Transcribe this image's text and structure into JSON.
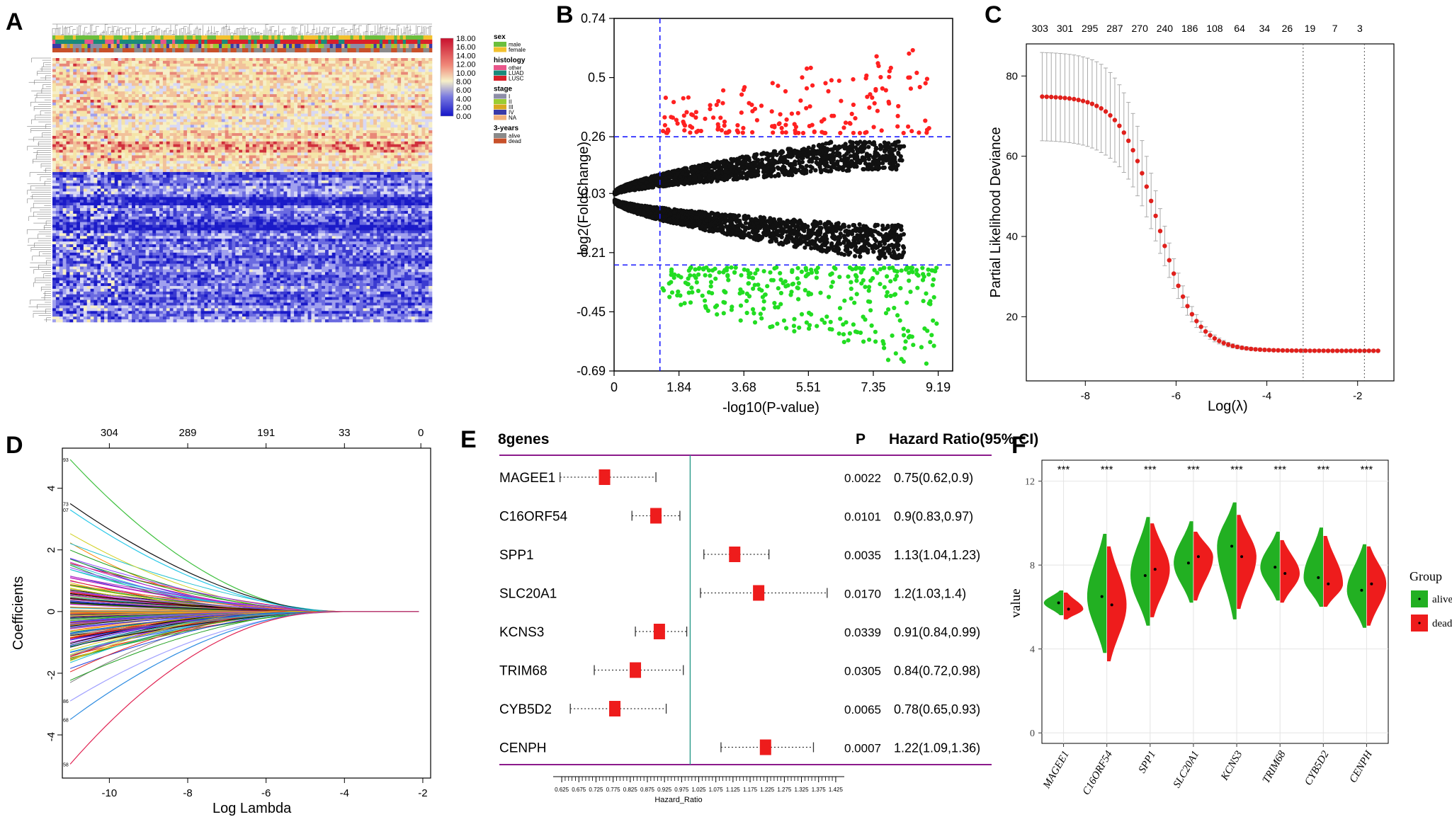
{
  "panel_letters": [
    "A",
    "B",
    "C",
    "D",
    "E",
    "F"
  ],
  "chart_data": [
    {
      "panel": "A",
      "type": "heatmap",
      "color_scale": {
        "ticks": [
          "18.00",
          "16.00",
          "14.00",
          "12.00",
          "10.00",
          "8.00",
          "6.00",
          "4.00",
          "2.00",
          "0.00"
        ],
        "colors": [
          "#c8102e",
          "#f6e6b4",
          "#1414c8"
        ]
      },
      "legend_groups": [
        {
          "title": "sex",
          "items": [
            {
              "label": "male",
              "color": "#6cbf3c"
            },
            {
              "label": "female",
              "color": "#f2c12e"
            }
          ]
        },
        {
          "title": "histology",
          "items": [
            {
              "label": "other",
              "color": "#e8558a"
            },
            {
              "label": "LUAD",
              "color": "#1a8a7a"
            },
            {
              "label": "LUSC",
              "color": "#d8202a"
            }
          ]
        },
        {
          "title": "stage",
          "items": [
            {
              "label": "I",
              "color": "#8e8ea8"
            },
            {
              "label": "II",
              "color": "#9acd32"
            },
            {
              "label": "III",
              "color": "#d8a820"
            },
            {
              "label": "IV",
              "color": "#3a3aa8"
            },
            {
              "label": "NA",
              "color": "#f2b07a"
            }
          ]
        },
        {
          "title": "3-years",
          "items": [
            {
              "label": "alive",
              "color": "#8a8a8a"
            },
            {
              "label": "dead",
              "color": "#c8502a"
            }
          ]
        }
      ]
    },
    {
      "panel": "B",
      "type": "scatter",
      "xlabel": "-log10(P-value)",
      "ylabel": "log2(FoldChange)",
      "xticks": [
        "0",
        "1.84",
        "3.68",
        "5.51",
        "7.35",
        "9.19"
      ],
      "xtick_values": [
        0,
        1.84,
        3.68,
        5.51,
        7.35,
        9.19
      ],
      "yticks": [
        "0.74",
        "0.5",
        "0.26",
        "0.03",
        "-0.21",
        "-0.45",
        "-0.69"
      ],
      "ytick_values": [
        0.74,
        0.5,
        0.26,
        0.03,
        -0.21,
        -0.45,
        -0.69
      ],
      "xlim": [
        0,
        9.6
      ],
      "ylim": [
        -0.69,
        0.74
      ],
      "thresholds": {
        "x": 1.3,
        "y_up": 0.26,
        "y_down": -0.26
      },
      "colors": {
        "up": "#ff2020",
        "down": "#22dd22",
        "ns": "#111111",
        "line": "#1a1aff"
      },
      "n_points": {
        "ns": 3400,
        "up": 170,
        "down": 330
      }
    },
    {
      "panel": "C",
      "type": "line",
      "xlabel": "Log(λ)",
      "ylabel": "Partial Likelihood Deviance",
      "xticks": [
        "-8",
        "-6",
        "-4",
        "-2"
      ],
      "xtick_values": [
        -8,
        -6,
        -4,
        -2
      ],
      "yticks": [
        "20",
        "40",
        "60",
        "80"
      ],
      "ytick_values": [
        20,
        40,
        60,
        80
      ],
      "xlim": [
        -9.3,
        -1.2
      ],
      "ylim": [
        4,
        88
      ],
      "top_labels": [
        "303",
        "301",
        "295",
        "287",
        "270",
        "240",
        "186",
        "108",
        "64",
        "34",
        "26",
        "19",
        "7",
        "3"
      ],
      "top_label_x": [
        -9.0,
        -8.45,
        -7.9,
        -7.35,
        -6.8,
        -6.25,
        -5.7,
        -5.15,
        -4.6,
        -4.05,
        -3.55,
        -3.05,
        -2.5,
        -1.95
      ],
      "vlines": [
        -3.2,
        -1.85
      ],
      "x_start": -8.95,
      "x_end": -1.55,
      "n_points": 75,
      "curve": {
        "start": 75,
        "end": 11.5,
        "mid": -6.4,
        "width": 0.42
      },
      "error_bar_start": 11,
      "error_bar_end": 0.3,
      "colors": {
        "points": "#e0201c",
        "error_bars": "#aaaaaa"
      }
    },
    {
      "panel": "D",
      "type": "line",
      "xlabel": "Log Lambda",
      "ylabel": "Coefficients",
      "xticks": [
        "-10",
        "-8",
        "-6",
        "-4",
        "-2"
      ],
      "xtick_values": [
        -10,
        -8,
        -6,
        -4,
        -2
      ],
      "yticks": [
        "-4",
        "-2",
        "0",
        "2",
        "4"
      ],
      "ytick_values": [
        -4,
        -2,
        0,
        2,
        4
      ],
      "xlim": [
        -11.2,
        -1.8
      ],
      "ylim": [
        -5.4,
        5.3
      ],
      "top_labels": [
        "304",
        "289",
        "191",
        "33",
        "0"
      ],
      "top_label_x": [
        -10,
        -8,
        -6,
        -4,
        -2.05
      ],
      "x_start": -11,
      "x_end": -2.1,
      "labelled_paths": [
        {
          "label": "93",
          "start": 4.93,
          "color": "#3ec03e"
        },
        {
          "label": "73",
          "start": 3.5,
          "color": "#111111"
        },
        {
          "label": "07",
          "start": 3.3,
          "color": "#28c8e8"
        },
        {
          "label": "86",
          "start": -2.9,
          "color": "#a0a0ff"
        },
        {
          "label": "68",
          "start": -3.5,
          "color": "#2a8ae0"
        },
        {
          "label": "58",
          "start": -4.95,
          "color": "#e02050"
        }
      ],
      "n_background_paths": 170
    },
    {
      "panel": "E",
      "type": "table",
      "header": {
        "genes": "8genes",
        "p": "P",
        "hr": "Hazard Ratio(95% CI)"
      },
      "xlabel": "Hazard_Ratio",
      "xticks": [
        "0.625",
        "0.675",
        "0.725",
        "0.775",
        "0.825",
        "0.875",
        "0.925",
        "0.975",
        "1.025",
        "1.075",
        "1.125",
        "1.175",
        "1.225",
        "1.275",
        "1.325",
        "1.375",
        "1.425"
      ],
      "xlim": [
        0.6,
        1.45
      ],
      "reference": 1.0,
      "rows": [
        {
          "gene": "MAGEE1",
          "p": "0.0022",
          "hr_text": "0.75(0.62,0.9)",
          "hr": 0.75,
          "lo": 0.62,
          "hi": 0.9
        },
        {
          "gene": "C16ORF54",
          "p": "0.0101",
          "hr_text": "0.9(0.83,0.97)",
          "hr": 0.9,
          "lo": 0.83,
          "hi": 0.97
        },
        {
          "gene": "SPP1",
          "p": "0.0035",
          "hr_text": "1.13(1.04,1.23)",
          "hr": 1.13,
          "lo": 1.04,
          "hi": 1.23
        },
        {
          "gene": "SLC20A1",
          "p": "0.0170",
          "hr_text": "1.2(1.03,1.4)",
          "hr": 1.2,
          "lo": 1.03,
          "hi": 1.4
        },
        {
          "gene": "KCNS3",
          "p": "0.0339",
          "hr_text": "0.91(0.84,0.99)",
          "hr": 0.91,
          "lo": 0.84,
          "hi": 0.99
        },
        {
          "gene": "TRIM68",
          "p": "0.0305",
          "hr_text": "0.84(0.72,0.98)",
          "hr": 0.84,
          "lo": 0.72,
          "hi": 0.98
        },
        {
          "gene": "CYB5D2",
          "p": "0.0065",
          "hr_text": "0.78(0.65,0.93)",
          "hr": 0.78,
          "lo": 0.65,
          "hi": 0.93
        },
        {
          "gene": "CENPH",
          "p": "0.0007",
          "hr_text": "1.22(1.09,1.36)",
          "hr": 1.22,
          "lo": 1.09,
          "hi": 1.36
        }
      ],
      "colors": {
        "box": "#ee1c1c",
        "frame": "#8b1a8b",
        "ref": "#2a9a8a"
      }
    },
    {
      "panel": "F",
      "type": "area",
      "ylabel": "value",
      "yticks": [
        "0",
        "4",
        "8",
        "12"
      ],
      "ytick_values": [
        0,
        4,
        8,
        12
      ],
      "ylim": [
        -0.5,
        13
      ],
      "categories": [
        "MAGEE1",
        "C16ORF54",
        "SPP1",
        "SLC20A1",
        "KCNS3",
        "TRIM68",
        "CYB5D2",
        "CENPH"
      ],
      "significance": "***",
      "legend_title": "Group",
      "series": [
        {
          "name": "alive",
          "color": "#22b022",
          "medians": [
            6.2,
            6.5,
            7.5,
            8.1,
            8.9,
            7.9,
            7.4,
            6.8
          ],
          "mins": [
            5.6,
            3.8,
            5.1,
            6.2,
            5.4,
            6.3,
            6.0,
            5.0
          ],
          "maxs": [
            6.8,
            9.5,
            10.3,
            10.1,
            11.0,
            9.6,
            9.8,
            9.0
          ]
        },
        {
          "name": "dead",
          "color": "#ee1c1c",
          "medians": [
            5.9,
            6.1,
            7.8,
            8.4,
            8.4,
            7.6,
            7.1,
            7.1
          ],
          "mins": [
            5.4,
            3.4,
            5.5,
            6.3,
            5.9,
            6.2,
            6.0,
            5.1
          ],
          "maxs": [
            6.7,
            8.9,
            10.0,
            9.6,
            10.4,
            9.2,
            9.4,
            8.9
          ]
        }
      ]
    }
  ]
}
